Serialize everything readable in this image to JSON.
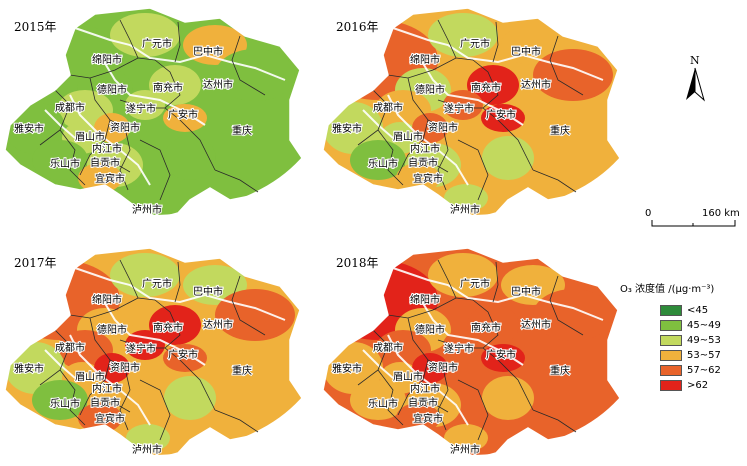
{
  "panels": [
    {
      "year_label": "2015年",
      "levels": [
        "c2",
        "c2",
        "c3",
        "c4",
        "c2",
        "c3",
        "c2",
        "c3",
        "c3",
        "c4",
        "c2",
        "c3",
        "c4",
        "c2",
        "c3",
        "c4",
        "c2",
        "c2"
      ]
    },
    {
      "year_label": "2016年",
      "levels": [
        "c4",
        "c5",
        "c3",
        "c4",
        "c5",
        "c6",
        "c3",
        "c4",
        "c5",
        "c6",
        "c3",
        "c3",
        "c5",
        "c2",
        "c3",
        "c4",
        "c3",
        "c3"
      ]
    },
    {
      "year_label": "2017年",
      "levels": [
        "c4",
        "c5",
        "c3",
        "c3",
        "c5",
        "c6",
        "c4",
        "c5",
        "c6",
        "c5",
        "c3",
        "c4",
        "c6",
        "c2",
        "c4",
        "c5",
        "c3",
        "c3"
      ]
    },
    {
      "year_label": "2018年",
      "levels": [
        "c5",
        "c6",
        "c4",
        "c4",
        "c5",
        "c5",
        "c4",
        "c5",
        "c5",
        "c6",
        "c4",
        "c4",
        "c6",
        "c4",
        "c4",
        "c5",
        "c4",
        "c4"
      ]
    }
  ],
  "cities": [
    "绵阳市",
    "广元市",
    "巴中市",
    "达州市",
    "南充市",
    "德阳市",
    "成都市",
    "遂宁市",
    "广安市",
    "雅安市",
    "眉山市",
    "资阳市",
    "乐山市",
    "内江市",
    "自贡市",
    "宜宾市",
    "泸州市"
  ],
  "region_label": "重庆",
  "legend": {
    "title": "O₃ 浓度值 /(μg·m⁻³)",
    "classes": [
      {
        "label": "<45",
        "color": "#2e8b3a"
      },
      {
        "label": "45~49",
        "color": "#7fbf3f"
      },
      {
        "label": "49~53",
        "color": "#c2d95e"
      },
      {
        "label": "53~57",
        "color": "#f0b13c"
      },
      {
        "label": "57~62",
        "color": "#e8632a"
      },
      {
        "label": ">62",
        "color": "#e2231a"
      }
    ]
  },
  "scale_bar": {
    "start": "0",
    "end": "160 km"
  },
  "north_label": "N"
}
